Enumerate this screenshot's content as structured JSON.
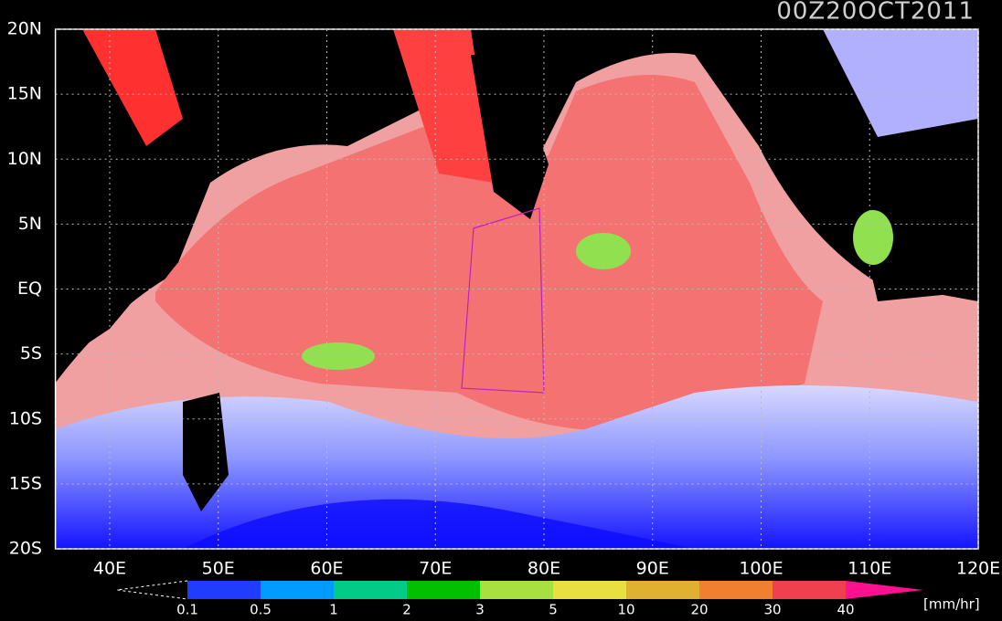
{
  "map": {
    "title": "00Z20OCT2011",
    "xlim": [
      35,
      120
    ],
    "ylim": [
      -20,
      20
    ],
    "xticks": [
      {
        "value": 40,
        "label": "40E"
      },
      {
        "value": 50,
        "label": "50E"
      },
      {
        "value": 60,
        "label": "60E"
      },
      {
        "value": 70,
        "label": "70E"
      },
      {
        "value": 80,
        "label": "80E"
      },
      {
        "value": 90,
        "label": "90E"
      },
      {
        "value": 100,
        "label": "100E"
      },
      {
        "value": 110,
        "label": "110E"
      },
      {
        "value": 120,
        "label": "120E"
      }
    ],
    "yticks": [
      {
        "value": 20,
        "label": "20N"
      },
      {
        "value": 15,
        "label": "15N"
      },
      {
        "value": 10,
        "label": "10N"
      },
      {
        "value": 5,
        "label": "5N"
      },
      {
        "value": 0,
        "label": "EQ"
      },
      {
        "value": -5,
        "label": "5S"
      },
      {
        "value": -10,
        "label": "10S"
      },
      {
        "value": -15,
        "label": "15S"
      },
      {
        "value": -20,
        "label": "20S"
      }
    ],
    "grid": true,
    "colorbar": {
      "levels": [
        0.1,
        0.5,
        1,
        2,
        3,
        5,
        10,
        20,
        30,
        40
      ],
      "colors": [
        "#1f3cff",
        "#009cff",
        "#00cc88",
        "#00c000",
        "#a8e040",
        "#e8e040",
        "#e0b030",
        "#f08030",
        "#f04050"
      ],
      "over_color": "#ff1090",
      "unit": "[mm/hr]"
    }
  }
}
